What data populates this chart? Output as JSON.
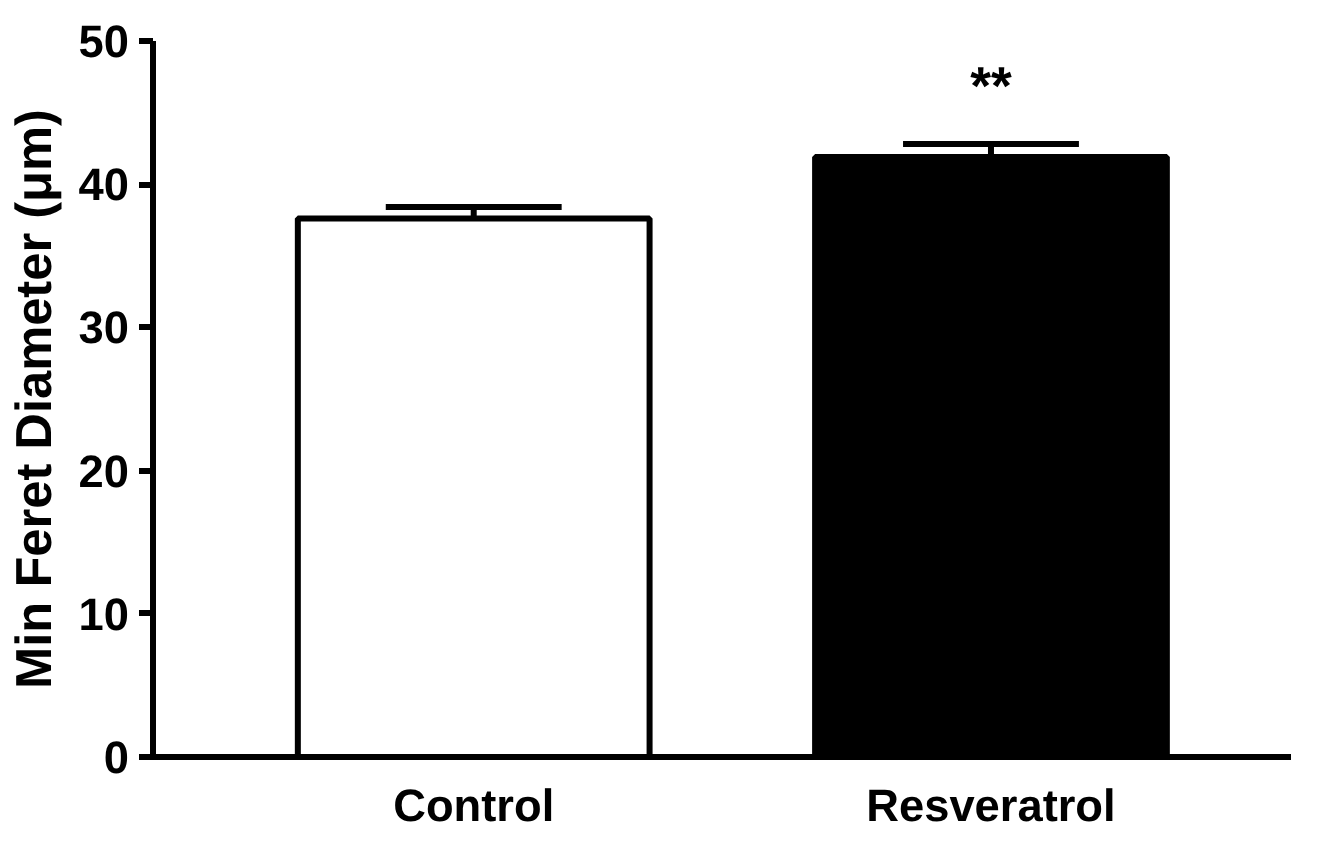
{
  "chart_data": {
    "type": "bar",
    "ylabel": "Min Feret Diameter (μm)",
    "categories": [
      "Control",
      "Resveratrol"
    ],
    "values": [
      37.6,
      41.9
    ],
    "colors": [
      "#ffffff",
      "#000000"
    ],
    "errors": [
      0.8,
      0.9
    ],
    "ylim": [
      0,
      50
    ],
    "yticks": [
      0,
      10,
      20,
      30,
      40,
      50
    ],
    "grid": false,
    "annotations": [
      "**"
    ]
  }
}
